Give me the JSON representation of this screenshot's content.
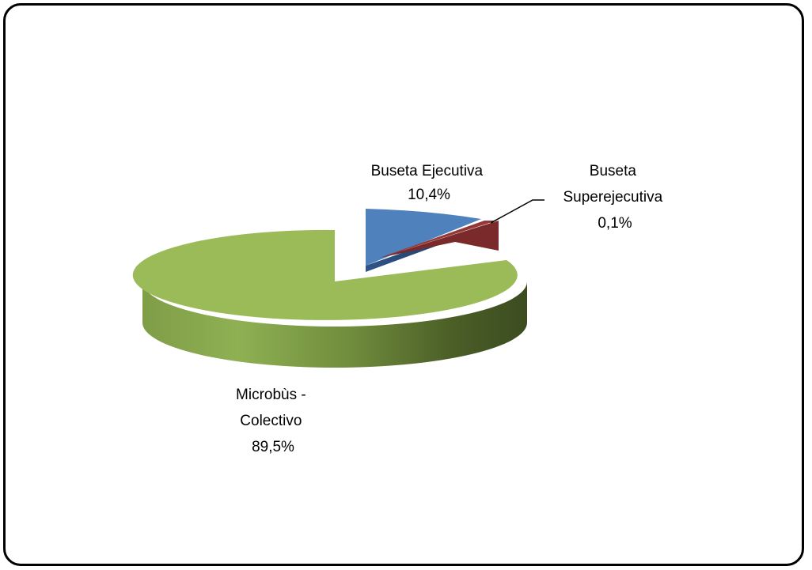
{
  "chart_data": {
    "type": "pie",
    "style": "3d-exploded",
    "slices": [
      {
        "name": "Buseta Ejecutiva",
        "value": 10.4,
        "label_lines": [
          "Buseta Ejecutiva",
          "10,4%"
        ],
        "color": "#4F81BD"
      },
      {
        "name": "Buseta Superejecutiva",
        "value": 0.1,
        "label_lines": [
          "Buseta",
          "Superejecutiva",
          "0,1%"
        ],
        "color": "#7A2A2A"
      },
      {
        "name": "Microbùs - Colectivo",
        "value": 89.5,
        "label_lines": [
          "Microbùs -",
          "Colectivo",
          "89,5%"
        ],
        "color": "#9BBB59"
      }
    ]
  }
}
